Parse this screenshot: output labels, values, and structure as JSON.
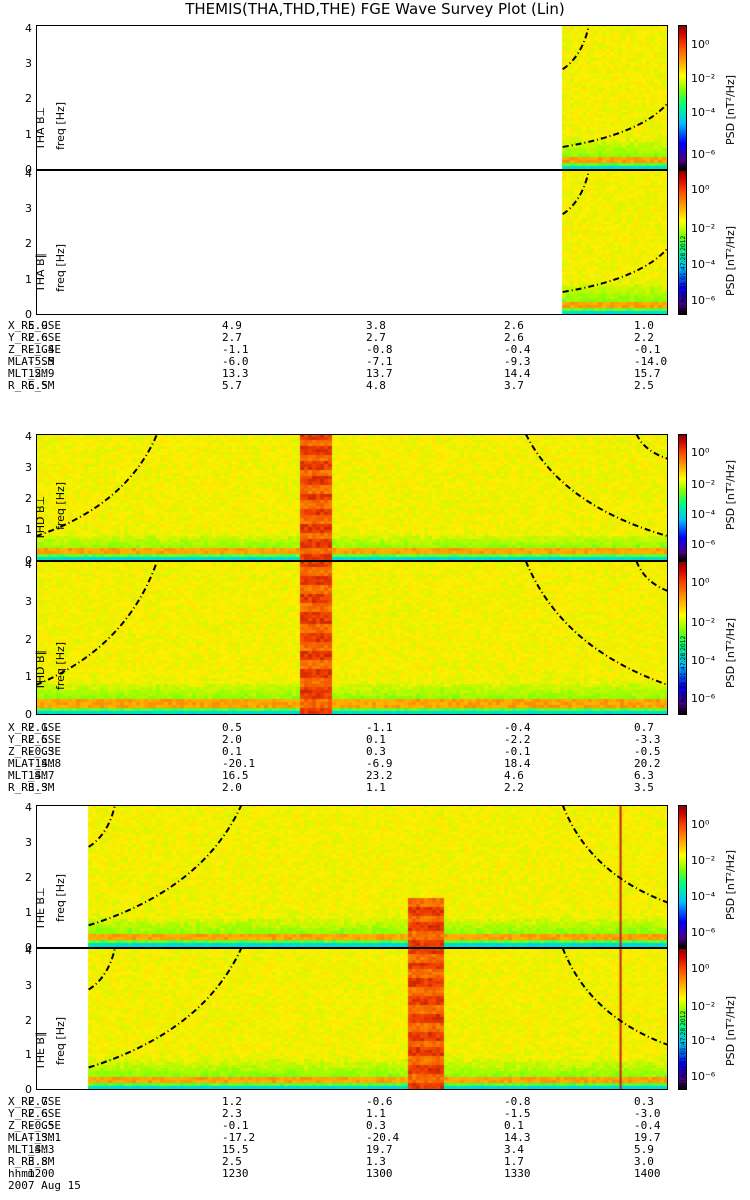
{
  "title": "THEMIS(THA,THD,THE) FGE Wave Survey Plot (Lin)",
  "colorbar": {
    "label": "PSD [nT²/Hz]",
    "ticks": [
      "10⁰",
      "10⁻²",
      "10⁻⁴",
      "10⁻⁶"
    ],
    "stamp": "Fri Aug 31 01:47:28 2012"
  },
  "panels_labels": [
    {
      "probe": "THA B⊥",
      "unit": "freq [Hz]"
    },
    {
      "probe": "THA B∥",
      "unit": "freq [Hz]"
    },
    {
      "probe": "THD B⊥",
      "unit": "freq [Hz]"
    },
    {
      "probe": "THD B∥",
      "unit": "freq [Hz]"
    },
    {
      "probe": "THE B⊥",
      "unit": "freq [Hz]"
    },
    {
      "probe": "THE B∥",
      "unit": "freq [Hz]"
    }
  ],
  "ephemeris": {
    "labels": [
      "X_RE_GSE",
      "Y_RE_GSE",
      "Z_RE_GSE",
      "MLAT_SM",
      "MLT_SM",
      "R_RE_SM"
    ],
    "tha": [
      [
        "5.9",
        "4.9",
        "3.8",
        "2.6",
        "1.0"
      ],
      [
        "2.6",
        "2.7",
        "2.7",
        "2.6",
        "2.2"
      ],
      [
        "-1.4",
        "-1.1",
        "-0.8",
        "-0.4",
        "-0.1"
      ],
      [
        "-5.5",
        "-6.0",
        "-7.1",
        "-9.3",
        "-14.0"
      ],
      [
        "12.9",
        "13.3",
        "13.7",
        "14.4",
        "15.7"
      ],
      [
        "6.5",
        "5.7",
        "4.8",
        "3.7",
        "2.5"
      ]
    ],
    "thd": [
      [
        "2.1",
        "0.5",
        "-1.1",
        "-0.4",
        "0.7"
      ],
      [
        "2.5",
        "2.0",
        "0.1",
        "-2.2",
        "-3.3"
      ],
      [
        "-0.3",
        "0.1",
        "0.3",
        "-0.1",
        "-0.5"
      ],
      [
        "-14.8",
        "-20.1",
        "-6.9",
        "18.4",
        "20.2"
      ],
      [
        "14.7",
        "16.5",
        "23.2",
        "4.6",
        "6.3"
      ],
      [
        "3.3",
        "2.0",
        "1.1",
        "2.2",
        "3.5"
      ]
    ],
    "the": [
      [
        "2.7",
        "1.2",
        "-0.6",
        "-0.8",
        "0.3"
      ],
      [
        "2.6",
        "2.3",
        "1.1",
        "-1.5",
        "-3.0"
      ],
      [
        "-0.5",
        "-0.1",
        "0.3",
        "0.1",
        "-0.4"
      ],
      [
        "-13.1",
        "-17.2",
        "-20.4",
        "14.3",
        "19.7"
      ],
      [
        "14.3",
        "15.5",
        "19.7",
        "3.4",
        "5.9"
      ],
      [
        "3.8",
        "2.5",
        "1.3",
        "1.7",
        "3.0"
      ]
    ],
    "time_label": "hhmm",
    "times": [
      "1200",
      "1230",
      "1300",
      "1330",
      "1400"
    ],
    "date": "2007 Aug 15"
  },
  "chart_data": {
    "type": "heatmap",
    "title": "THEMIS(THA,THD,THE) FGE Wave Survey Plot (Lin)",
    "xlabel": "hhmm",
    "x_ticks": [
      "1200",
      "1230",
      "1300",
      "1330",
      "1400"
    ],
    "xlim": [
      "1200",
      "1400"
    ],
    "ylabel": "freq [Hz]",
    "ylim": [
      0,
      4.1
    ],
    "y_ticks": [
      0,
      1,
      2,
      3,
      4
    ],
    "color_scale": {
      "label": "PSD [nT²/Hz]",
      "log": true,
      "range": [
        1e-07,
        10
      ],
      "ticks": [
        1.0,
        0.01,
        0.0001,
        1e-06
      ]
    },
    "panels": [
      {
        "name": "THA B⊥",
        "data_start": "1340",
        "data_end": "1400",
        "hotspot": null,
        "guides": [
          {
            "t": [
              "1340",
              "1400"
            ],
            "f": [
              0.65,
              1.9
            ]
          },
          {
            "t": [
              "1340",
              "1345"
            ],
            "f": [
              2.85,
              4.1
            ]
          }
        ]
      },
      {
        "name": "THA B∥",
        "data_start": "1340",
        "data_end": "1400",
        "hotspot": null,
        "guides": [
          {
            "t": [
              "1340",
              "1400"
            ],
            "f": [
              0.65,
              1.9
            ]
          },
          {
            "t": [
              "1340",
              "1345"
            ],
            "f": [
              2.85,
              4.1
            ]
          }
        ]
      },
      {
        "name": "THD B⊥",
        "data_start": "1200",
        "data_end": "1400",
        "hotspot": {
          "start": "1250",
          "end": "1256",
          "f_max": 4.1
        },
        "guides": [
          {
            "t": [
              "1200",
              "1223"
            ],
            "f": [
              0.8,
              4.1
            ]
          },
          {
            "t": [
              "1333",
              "1400"
            ],
            "f": [
              4.1,
              0.8
            ]
          },
          {
            "t": [
              "1354",
              "1400"
            ],
            "f": [
              4.1,
              3.3
            ]
          }
        ]
      },
      {
        "name": "THD B∥",
        "data_start": "1200",
        "data_end": "1400",
        "hotspot": {
          "start": "1250",
          "end": "1256",
          "f_max": 4.1
        },
        "guides": [
          {
            "t": [
              "1200",
              "1223"
            ],
            "f": [
              0.8,
              4.1
            ]
          },
          {
            "t": [
              "1333",
              "1400"
            ],
            "f": [
              4.1,
              0.8
            ]
          },
          {
            "t": [
              "1354",
              "1400"
            ],
            "f": [
              4.1,
              3.3
            ]
          }
        ]
      },
      {
        "name": "THE B⊥",
        "data_start": "1210",
        "data_end": "1400",
        "hotspot": {
          "start": "1310",
          "end": "1317",
          "f_max": 1.5
        },
        "marker_time": "1351",
        "guides": [
          {
            "t": [
              "1210",
              "1239"
            ],
            "f": [
              0.65,
              4.1
            ]
          },
          {
            "t": [
              "1340",
              "1400"
            ],
            "f": [
              4.1,
              1.3
            ]
          },
          {
            "t": [
              "1210",
              "1215"
            ],
            "f": [
              2.9,
              4.1
            ]
          }
        ]
      },
      {
        "name": "THE B∥",
        "data_start": "1210",
        "data_end": "1400",
        "hotspot": {
          "start": "1310",
          "end": "1317",
          "f_max": 4.1
        },
        "marker_time": "1351",
        "guides": [
          {
            "t": [
              "1210",
              "1239"
            ],
            "f": [
              0.65,
              4.1
            ]
          },
          {
            "t": [
              "1340",
              "1400"
            ],
            "f": [
              4.1,
              1.3
            ]
          },
          {
            "t": [
              "1210",
              "1215"
            ],
            "f": [
              2.9,
              4.1
            ]
          }
        ]
      }
    ]
  }
}
